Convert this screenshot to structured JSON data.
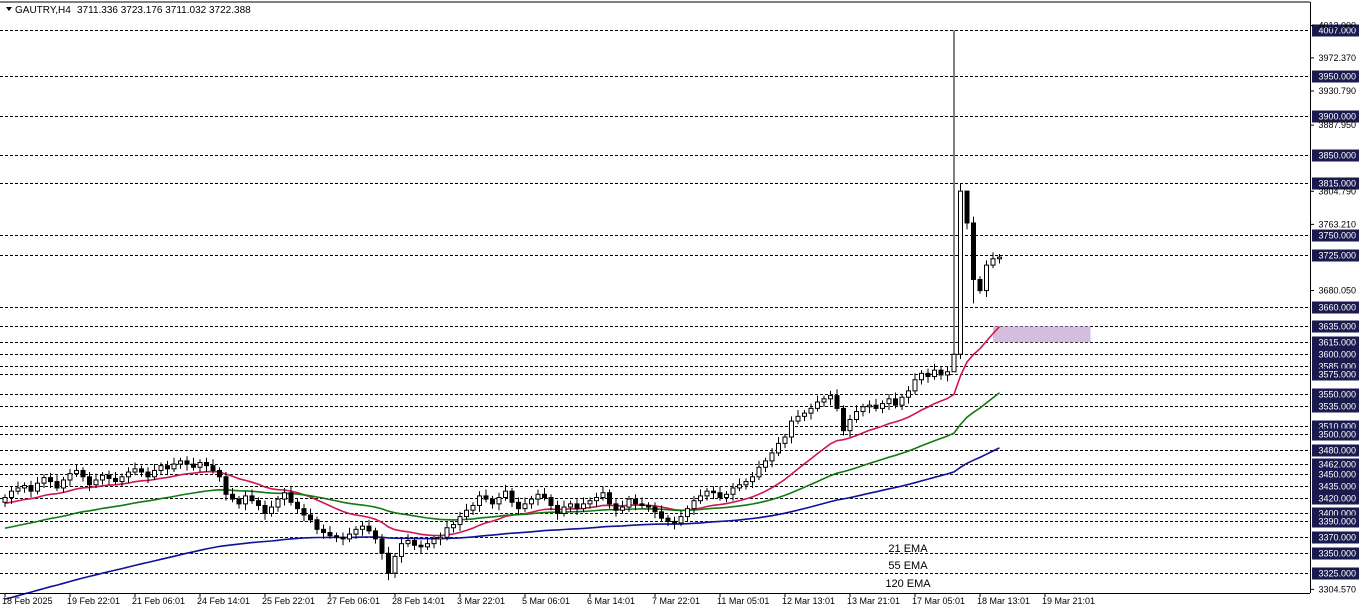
{
  "header": {
    "symbol": "GAUTRY,H4",
    "ohlc": "3711.336 3723.176 3711.032 3722.388"
  },
  "colors": {
    "level_line": "#000000",
    "level_label_bg": "#1a1a4e",
    "ema21": "#d01650",
    "ema55": "#117a11",
    "ema120": "#10109a",
    "zone": "#cdb2d8",
    "bull_body": "#ffffff",
    "bear_body": "#000000"
  },
  "legend": [
    {
      "label": "21 EMA",
      "color": "#d01650"
    },
    {
      "label": "55 EMA",
      "color": "#117a11"
    },
    {
      "label": "120 EMA",
      "color": "#10109a"
    }
  ],
  "chart_data": {
    "type": "candlestick",
    "timeframe": "H4",
    "y_range": [
      3300,
      4015
    ],
    "levels": [
      4007.0,
      3950.0,
      3900.0,
      3850.0,
      3815.0,
      3750.0,
      3725.0,
      3660.0,
      3635.0,
      3615.0,
      3600.0,
      3585.0,
      3575.0,
      3550.0,
      3535.0,
      3510.0,
      3500.0,
      3480.0,
      3462.0,
      3450.0,
      3435.0,
      3420.0,
      3400.0,
      3390.0,
      3370.0,
      3350.0,
      3325.0
    ],
    "level_labels": [
      "4007.000",
      "3950.000",
      "3900.000",
      "3850.000",
      "3815.000",
      "3750.000",
      "3725.000",
      "3660.000",
      "3635.000",
      "3615.000",
      "3600.000",
      "3585.000",
      "3575.000",
      "3550.000",
      "3535.000",
      "3510.000",
      "3500.000",
      "3480.000",
      "3462.000",
      "3450.000",
      "3435.000",
      "3420.000",
      "3400.000",
      "3390.000",
      "3370.000",
      "3350.000",
      "3325.000"
    ],
    "price_ticks": [
      {
        "v": 4013.0,
        "label": "4013.000"
      },
      {
        "v": 3972.37,
        "label": "3972.370"
      },
      {
        "v": 3930.79,
        "label": "3930.790"
      },
      {
        "v": 3887.95,
        "label": "3887.950"
      },
      {
        "v": 3804.79,
        "label": "3804.790"
      },
      {
        "v": 3763.21,
        "label": "3763.210"
      },
      {
        "v": 3680.05,
        "label": "3680.050"
      },
      {
        "v": 3304.57,
        "label": "3304.570"
      }
    ],
    "zone": {
      "x_start": 152,
      "x_end": 167,
      "low": 3615,
      "high": 3635
    },
    "x_labels": [
      {
        "i": 0,
        "label": "18 Feb 2025"
      },
      {
        "i": 10,
        "label": "19 Feb 22:01"
      },
      {
        "i": 20,
        "label": "21 Feb 06:01"
      },
      {
        "i": 30,
        "label": "24 Feb 14:01"
      },
      {
        "i": 40,
        "label": "25 Feb 22:01"
      },
      {
        "i": 50,
        "label": "27 Feb 06:01"
      },
      {
        "i": 60,
        "label": "28 Feb 14:01"
      },
      {
        "i": 70,
        "label": "3 Mar 22:01"
      },
      {
        "i": 80,
        "label": "5 Mar 06:01"
      },
      {
        "i": 90,
        "label": "6 Mar 14:01"
      },
      {
        "i": 100,
        "label": "7 Mar 22:01"
      },
      {
        "i": 110,
        "label": "11 Mar 05:01"
      },
      {
        "i": 120,
        "label": "12 Mar 13:01"
      },
      {
        "i": 130,
        "label": "13 Mar 21:01"
      },
      {
        "i": 140,
        "label": "17 Mar 05:01"
      },
      {
        "i": 150,
        "label": "18 Mar 13:01"
      },
      {
        "i": 160,
        "label": "19 Mar 21:01"
      }
    ],
    "closes": [
      3420,
      3428,
      3432,
      3435,
      3428,
      3438,
      3445,
      3440,
      3432,
      3442,
      3450,
      3454,
      3446,
      3436,
      3442,
      3448,
      3444,
      3440,
      3446,
      3452,
      3456,
      3452,
      3446,
      3454,
      3460,
      3456,
      3462,
      3466,
      3462,
      3458,
      3464,
      3460,
      3454,
      3446,
      3424,
      3418,
      3412,
      3422,
      3416,
      3410,
      3400,
      3408,
      3418,
      3426,
      3414,
      3406,
      3398,
      3392,
      3380,
      3376,
      3372,
      3370,
      3368,
      3374,
      3380,
      3384,
      3378,
      3368,
      3350,
      3325,
      3346,
      3362,
      3366,
      3360,
      3358,
      3362,
      3368,
      3370,
      3382,
      3386,
      3396,
      3404,
      3410,
      3422,
      3418,
      3412,
      3420,
      3428,
      3414,
      3406,
      3412,
      3418,
      3424,
      3420,
      3410,
      3400,
      3408,
      3412,
      3406,
      3412,
      3416,
      3420,
      3426,
      3412,
      3404,
      3408,
      3418,
      3412,
      3410,
      3408,
      3402,
      3394,
      3390,
      3388,
      3396,
      3406,
      3416,
      3422,
      3428,
      3426,
      3420,
      3424,
      3432,
      3436,
      3440,
      3446,
      3458,
      3466,
      3476,
      3488,
      3496,
      3516,
      3522,
      3526,
      3532,
      3540,
      3544,
      3548,
      3532,
      3504,
      3518,
      3528,
      3534,
      3536,
      3532,
      3538,
      3544,
      3536,
      3546,
      3554,
      3568,
      3576,
      3572,
      3580,
      3574,
      3578,
      3600,
      3805,
      3765,
      3694,
      3680,
      3712,
      3720,
      3722
    ],
    "highs_override": [
      {
        "i": 146,
        "v": 4007
      },
      {
        "i": 147,
        "v": 3814
      },
      {
        "i": 148,
        "v": 3768
      }
    ],
    "lows_override": [
      {
        "i": 59,
        "v": 3316
      },
      {
        "i": 146,
        "v": 3586
      },
      {
        "i": 149,
        "v": 3664
      },
      {
        "i": 150,
        "v": 3676
      }
    ]
  }
}
